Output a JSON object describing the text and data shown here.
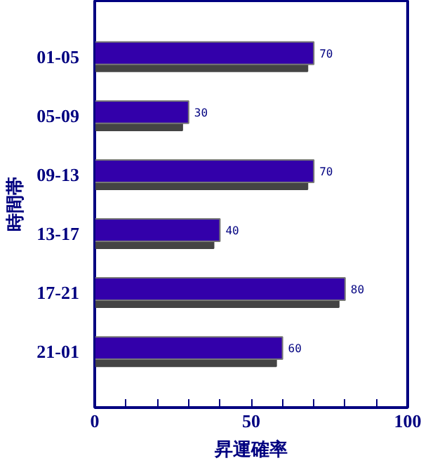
{
  "chart_data": {
    "type": "bar",
    "orientation": "horizontal",
    "xlabel": "昇運確率",
    "ylabel": "時間帯",
    "categories": [
      "01-05",
      "05-09",
      "09-13",
      "13-17",
      "17-21",
      "21-01"
    ],
    "series": [
      {
        "color": "#3300aa",
        "values": [
          70,
          30,
          70,
          40,
          80,
          60
        ],
        "value_labels": [
          "70",
          "30",
          "70",
          "40",
          "80",
          "60"
        ]
      },
      {
        "color": "#444444",
        "values": [
          68,
          28,
          68,
          38,
          78,
          58
        ]
      }
    ],
    "xlim": [
      0,
      100
    ],
    "xticks": [
      0,
      {
        "value": 10,
        "label": null
      },
      {
        "value": 20,
        "label": null
      },
      {
        "value": 30,
        "label": null
      },
      {
        "value": 40,
        "label": null
      },
      50,
      {
        "value": 60,
        "label": null
      },
      {
        "value": 70,
        "label": null
      },
      {
        "value": 80,
        "label": null
      },
      {
        "value": 90,
        "label": null
      },
      100
    ],
    "grid": false
  }
}
